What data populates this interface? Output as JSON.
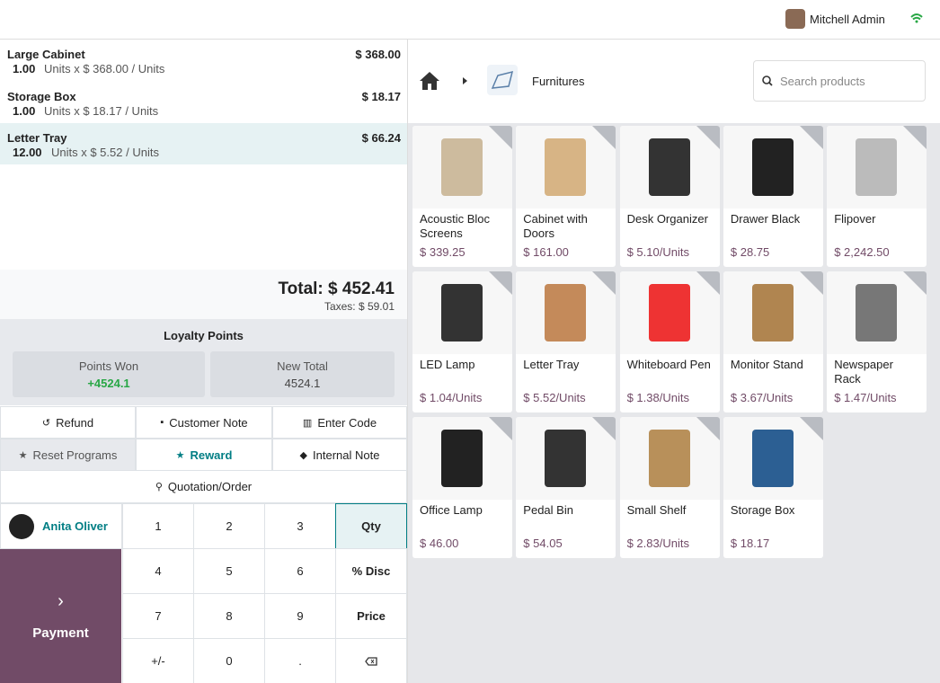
{
  "header": {
    "user": "Mitchell Admin"
  },
  "orderlines": [
    {
      "name": "Large Cabinet",
      "qty": "1.00",
      "unit": "Units x $ 368.00 / Units",
      "price": "$ 368.00"
    },
    {
      "name": "Storage Box",
      "qty": "1.00",
      "unit": "Units x $ 18.17 / Units",
      "price": "$ 18.17"
    },
    {
      "name": "Letter Tray",
      "qty": "12.00",
      "unit": "Units x $ 5.52 / Units",
      "price": "$ 66.24"
    }
  ],
  "totals": {
    "total": "Total: $ 452.41",
    "taxes": "Taxes: $ 59.01"
  },
  "loyalty": {
    "title": "Loyalty Points",
    "won_label": "Points Won",
    "won": "+4524.1",
    "new_label": "New Total",
    "new": "4524.1"
  },
  "actions": [
    "Refund",
    "Customer Note",
    "Enter Code",
    "Reset Programs",
    "Reward",
    "Internal Note",
    "Quotation/Order"
  ],
  "customer": "Anita Oliver",
  "numpad": [
    "1",
    "2",
    "3",
    "Qty",
    "4",
    "5",
    "6",
    "% Disc",
    "7",
    "8",
    "9",
    "Price",
    "+/-",
    "0",
    "."
  ],
  "payment": "Payment",
  "breadcrumb": "Furnitures",
  "search_placeholder": "Search products",
  "products": [
    {
      "name": "Acoustic Bloc Screens",
      "price": "$ 339.25"
    },
    {
      "name": "Cabinet with Doors",
      "price": "$ 161.00"
    },
    {
      "name": "Desk Organizer",
      "price": "$ 5.10/Units"
    },
    {
      "name": "Drawer Black",
      "price": "$ 28.75"
    },
    {
      "name": "Flipover",
      "price": "$ 2,242.50"
    },
    {
      "name": "LED Lamp",
      "price": "$ 1.04/Units"
    },
    {
      "name": "Letter Tray",
      "price": "$ 5.52/Units"
    },
    {
      "name": "Whiteboard Pen",
      "price": "$ 1.38/Units"
    },
    {
      "name": "Monitor Stand",
      "price": "$ 3.67/Units"
    },
    {
      "name": "Newspaper Rack",
      "price": "$ 1.47/Units"
    },
    {
      "name": "Office Lamp",
      "price": "$ 46.00"
    },
    {
      "name": "Pedal Bin",
      "price": "$ 54.05"
    },
    {
      "name": "Small Shelf",
      "price": "$ 2.83/Units"
    },
    {
      "name": "Storage Box",
      "price": "$ 18.17"
    }
  ]
}
